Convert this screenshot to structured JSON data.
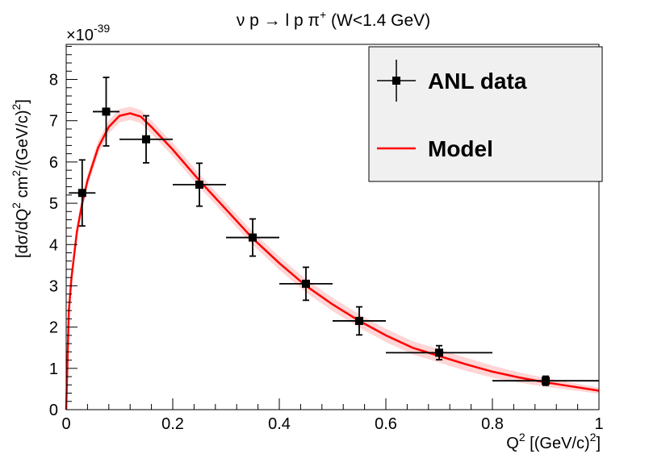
{
  "chart_data": {
    "type": "scatter",
    "title": {
      "main": "ν p → l p π",
      "sup": "+",
      "rest": " (W<1.4 GeV)"
    },
    "xlabel": {
      "base": "Q",
      "sup": "2",
      "mid": " [(GeV/c)",
      "sup2": "2",
      "tail": "]"
    },
    "ylabel": {
      "part1": "[dσ/dQ",
      "sup1": "2",
      "part2": "   cm",
      "sup2": "2",
      "part3": "/(GeV/c)",
      "sup3": "2",
      "part4": "]"
    },
    "y_exponent": {
      "base": "×10",
      "sup": "-39"
    },
    "xlim": [
      0,
      1
    ],
    "ylim": [
      0,
      8.85
    ],
    "x_ticks": [
      {
        "value": 0,
        "label": "0"
      },
      {
        "value": 0.2,
        "label": "0.2"
      },
      {
        "value": 0.4,
        "label": "0.4"
      },
      {
        "value": 0.6,
        "label": "0.6"
      },
      {
        "value": 0.8,
        "label": "0.8"
      },
      {
        "value": 1.0,
        "label": "1"
      }
    ],
    "y_ticks": [
      {
        "value": 0,
        "label": "0"
      },
      {
        "value": 1,
        "label": "1"
      },
      {
        "value": 2,
        "label": "2"
      },
      {
        "value": 3,
        "label": "3"
      },
      {
        "value": 4,
        "label": "4"
      },
      {
        "value": 5,
        "label": "5"
      },
      {
        "value": 6,
        "label": "6"
      },
      {
        "value": 7,
        "label": "7"
      },
      {
        "value": 8,
        "label": "8"
      }
    ],
    "series": [
      {
        "name": "ANL data",
        "kind": "points",
        "color": "#000000",
        "points": [
          {
            "x": 0.03,
            "y": 5.25,
            "xerr": 0.025,
            "yerr": 0.8
          },
          {
            "x": 0.075,
            "y": 7.22,
            "xerr": 0.025,
            "yerr": 0.83
          },
          {
            "x": 0.15,
            "y": 6.55,
            "xerr": 0.05,
            "yerr": 0.57
          },
          {
            "x": 0.25,
            "y": 5.45,
            "xerr": 0.05,
            "yerr": 0.52
          },
          {
            "x": 0.35,
            "y": 4.17,
            "xerr": 0.05,
            "yerr": 0.45
          },
          {
            "x": 0.45,
            "y": 3.05,
            "xerr": 0.05,
            "yerr": 0.4
          },
          {
            "x": 0.55,
            "y": 2.15,
            "xerr": 0.05,
            "yerr": 0.34
          },
          {
            "x": 0.7,
            "y": 1.38,
            "xerr": 0.1,
            "yerr": 0.17
          },
          {
            "x": 0.9,
            "y": 0.7,
            "xerr": 0.1,
            "yerr": 0.11
          }
        ]
      },
      {
        "name": "Model",
        "kind": "line",
        "color": "#ff0000",
        "band_color": "#ff9999",
        "band_halfwidth": 0.16,
        "points": [
          {
            "x": 0.0,
            "y": 0.0
          },
          {
            "x": 0.005,
            "y": 2.4
          },
          {
            "x": 0.01,
            "y": 3.2
          },
          {
            "x": 0.02,
            "y": 4.3
          },
          {
            "x": 0.03,
            "y": 5.0
          },
          {
            "x": 0.04,
            "y": 5.55
          },
          {
            "x": 0.06,
            "y": 6.35
          },
          {
            "x": 0.08,
            "y": 6.85
          },
          {
            "x": 0.1,
            "y": 7.12
          },
          {
            "x": 0.12,
            "y": 7.18
          },
          {
            "x": 0.14,
            "y": 7.1
          },
          {
            "x": 0.16,
            "y": 6.85
          },
          {
            "x": 0.2,
            "y": 6.3
          },
          {
            "x": 0.25,
            "y": 5.55
          },
          {
            "x": 0.3,
            "y": 4.85
          },
          {
            "x": 0.35,
            "y": 4.15
          },
          {
            "x": 0.4,
            "y": 3.55
          },
          {
            "x": 0.45,
            "y": 3.0
          },
          {
            "x": 0.5,
            "y": 2.55
          },
          {
            "x": 0.55,
            "y": 2.15
          },
          {
            "x": 0.6,
            "y": 1.8
          },
          {
            "x": 0.65,
            "y": 1.5
          },
          {
            "x": 0.7,
            "y": 1.3
          },
          {
            "x": 0.75,
            "y": 1.1
          },
          {
            "x": 0.8,
            "y": 0.92
          },
          {
            "x": 0.85,
            "y": 0.78
          },
          {
            "x": 0.9,
            "y": 0.66
          },
          {
            "x": 0.95,
            "y": 0.56
          },
          {
            "x": 1.0,
            "y": 0.46
          }
        ]
      }
    ],
    "legend": {
      "position": "top-right",
      "background": "#f0f0f0",
      "entries": [
        {
          "label": "ANL data",
          "marker": "point-errorbar"
        },
        {
          "label": "Model",
          "marker": "line"
        }
      ]
    },
    "grid": false
  }
}
